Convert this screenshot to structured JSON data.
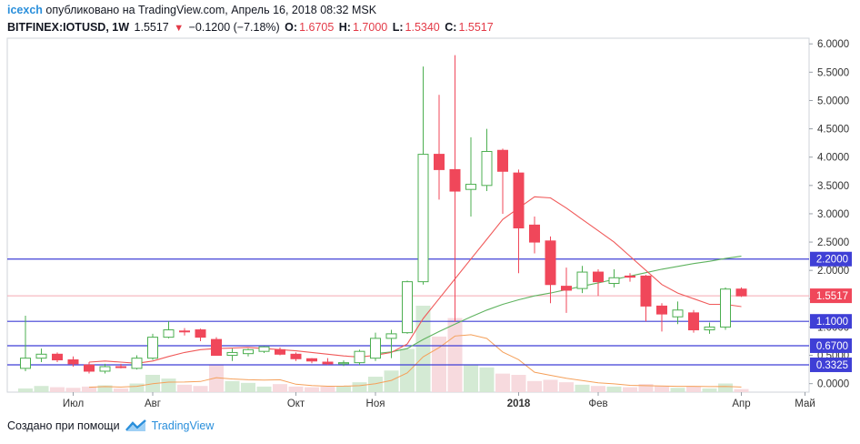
{
  "header": {
    "user": "icexch",
    "published": "опубликовано на TradingView.com, Апрель 16, 2018 08:32 MSK",
    "symbol": "BITFINEX:IOTUSD, 1W",
    "last": "1.5517",
    "change": "−0.1200 (−7.18%)",
    "o_label": "O:",
    "o_value": "1.6705",
    "h_label": "H:",
    "h_value": "1.7000",
    "l_label": "L:",
    "l_value": "1.5340",
    "c_label": "C:",
    "c_value": "1.5517"
  },
  "footer": {
    "created_with": "Создано при помощи",
    "brand": "TradingView"
  },
  "colors": {
    "up": "#4caf50",
    "down": "#f0475a",
    "level_line": "#3f3fd6",
    "price_line": "#f5a9b0",
    "ma_fast": "#f05a5a",
    "ma_slow": "#5fb35f",
    "vol_ma": "#f5a05a",
    "label_bg": "#3f3fd6",
    "price_label_bg": "#f0475a"
  },
  "chart_data": {
    "type": "candlestick",
    "y_range": [
      -0.15,
      6.1
    ],
    "y_ticks": [
      "6.0000",
      "5.5000",
      "5.0000",
      "4.5000",
      "4.0000",
      "3.5000",
      "3.0000",
      "2.5000",
      "2.0000",
      "1.5000",
      "1.0000",
      "0.5000",
      "0.0000"
    ],
    "x_ticks": [
      {
        "label": "Июл",
        "week": 3
      },
      {
        "label": "Авг",
        "week": 8
      },
      {
        "label": "Окт",
        "week": 17
      },
      {
        "label": "Ноя",
        "week": 22
      },
      {
        "label": "2018",
        "week": 31
      },
      {
        "label": "Фев",
        "week": 36
      },
      {
        "label": "Апр",
        "week": 45
      },
      {
        "label": "Май",
        "week": 49
      }
    ],
    "horizontal_levels": [
      {
        "value": 2.2,
        "label": "2.2000"
      },
      {
        "value": 1.1,
        "label": "1.1000"
      },
      {
        "value": 0.67,
        "label": "0.6700"
      },
      {
        "value": 0.3325,
        "label": "0.3325"
      }
    ],
    "last_price": {
      "value": 1.5517,
      "label": "1.5517"
    },
    "candles": [
      {
        "o": 0.27,
        "h": 1.2,
        "l": 0.22,
        "c": 0.45,
        "v": 0.06
      },
      {
        "o": 0.45,
        "h": 0.62,
        "l": 0.38,
        "c": 0.52,
        "v": 0.1
      },
      {
        "o": 0.52,
        "h": 0.55,
        "l": 0.38,
        "c": 0.42,
        "v": 0.08
      },
      {
        "o": 0.42,
        "h": 0.48,
        "l": 0.3,
        "c": 0.35,
        "v": 0.07
      },
      {
        "o": 0.33,
        "h": 0.38,
        "l": 0.18,
        "c": 0.22,
        "v": 0.09
      },
      {
        "o": 0.22,
        "h": 0.35,
        "l": 0.18,
        "c": 0.3,
        "v": 0.11
      },
      {
        "o": 0.3,
        "h": 0.35,
        "l": 0.27,
        "c": 0.29,
        "v": 0.06
      },
      {
        "o": 0.27,
        "h": 0.5,
        "l": 0.25,
        "c": 0.45,
        "v": 0.14
      },
      {
        "o": 0.45,
        "h": 0.88,
        "l": 0.42,
        "c": 0.82,
        "v": 0.28
      },
      {
        "o": 0.82,
        "h": 1.1,
        "l": 0.8,
        "c": 0.95,
        "v": 0.22
      },
      {
        "o": 0.93,
        "h": 0.98,
        "l": 0.85,
        "c": 0.92,
        "v": 0.12
      },
      {
        "o": 0.95,
        "h": 0.97,
        "l": 0.75,
        "c": 0.82,
        "v": 0.1
      },
      {
        "o": 0.78,
        "h": 0.82,
        "l": 0.5,
        "c": 0.5,
        "v": 0.45
      },
      {
        "o": 0.5,
        "h": 0.62,
        "l": 0.4,
        "c": 0.55,
        "v": 0.18
      },
      {
        "o": 0.53,
        "h": 0.62,
        "l": 0.48,
        "c": 0.6,
        "v": 0.15
      },
      {
        "o": 0.57,
        "h": 0.66,
        "l": 0.54,
        "c": 0.65,
        "v": 0.09
      },
      {
        "o": 0.6,
        "h": 0.64,
        "l": 0.5,
        "c": 0.52,
        "v": 0.13
      },
      {
        "o": 0.52,
        "h": 0.55,
        "l": 0.4,
        "c": 0.44,
        "v": 0.09
      },
      {
        "o": 0.44,
        "h": 0.45,
        "l": 0.36,
        "c": 0.4,
        "v": 0.08
      },
      {
        "o": 0.38,
        "h": 0.45,
        "l": 0.33,
        "c": 0.35,
        "v": 0.09
      },
      {
        "o": 0.35,
        "h": 0.41,
        "l": 0.31,
        "c": 0.37,
        "v": 0.1
      },
      {
        "o": 0.37,
        "h": 0.6,
        "l": 0.33,
        "c": 0.57,
        "v": 0.16
      },
      {
        "o": 0.45,
        "h": 0.9,
        "l": 0.4,
        "c": 0.8,
        "v": 0.25
      },
      {
        "o": 0.8,
        "h": 0.95,
        "l": 0.45,
        "c": 0.88,
        "v": 0.35
      },
      {
        "o": 0.9,
        "h": 1.82,
        "l": 0.88,
        "c": 1.8,
        "v": 0.7
      },
      {
        "o": 1.8,
        "h": 5.6,
        "l": 1.75,
        "c": 4.05,
        "v": 1.4
      },
      {
        "o": 4.05,
        "h": 5.1,
        "l": 3.25,
        "c": 3.78,
        "v": 0.9
      },
      {
        "o": 3.78,
        "h": 5.8,
        "l": 1.1,
        "c": 3.4,
        "v": 1.2
      },
      {
        "o": 3.43,
        "h": 4.35,
        "l": 2.95,
        "c": 3.52,
        "v": 0.45
      },
      {
        "o": 3.5,
        "h": 4.5,
        "l": 3.4,
        "c": 4.1,
        "v": 0.4
      },
      {
        "o": 4.12,
        "h": 4.15,
        "l": 3.0,
        "c": 3.75,
        "v": 0.3
      },
      {
        "o": 3.72,
        "h": 3.78,
        "l": 1.95,
        "c": 2.75,
        "v": 0.28
      },
      {
        "o": 2.8,
        "h": 2.95,
        "l": 2.3,
        "c": 2.5,
        "v": 0.18
      },
      {
        "o": 2.52,
        "h": 2.6,
        "l": 1.42,
        "c": 1.75,
        "v": 0.2
      },
      {
        "o": 1.72,
        "h": 2.05,
        "l": 1.25,
        "c": 1.65,
        "v": 0.16
      },
      {
        "o": 1.68,
        "h": 2.08,
        "l": 1.6,
        "c": 1.97,
        "v": 0.12
      },
      {
        "o": 1.97,
        "h": 2.02,
        "l": 1.55,
        "c": 1.8,
        "v": 0.1
      },
      {
        "o": 1.77,
        "h": 2.02,
        "l": 1.7,
        "c": 1.87,
        "v": 0.09
      },
      {
        "o": 1.9,
        "h": 1.95,
        "l": 1.8,
        "c": 1.88,
        "v": 0.08
      },
      {
        "o": 1.9,
        "h": 1.92,
        "l": 1.1,
        "c": 1.37,
        "v": 0.13
      },
      {
        "o": 1.37,
        "h": 1.42,
        "l": 0.92,
        "c": 1.23,
        "v": 0.1
      },
      {
        "o": 1.18,
        "h": 1.45,
        "l": 1.05,
        "c": 1.3,
        "v": 0.07
      },
      {
        "o": 1.25,
        "h": 1.3,
        "l": 0.9,
        "c": 0.95,
        "v": 0.09
      },
      {
        "o": 0.95,
        "h": 1.08,
        "l": 0.88,
        "c": 1.0,
        "v": 0.06
      },
      {
        "o": 1.0,
        "h": 1.7,
        "l": 0.95,
        "c": 1.67,
        "v": 0.14
      },
      {
        "o": 1.67,
        "h": 1.7,
        "l": 1.53,
        "c": 1.55,
        "v": 0.05
      }
    ],
    "ma_fast": [
      null,
      null,
      null,
      null,
      0.38,
      0.4,
      0.38,
      0.36,
      0.4,
      0.48,
      0.55,
      0.6,
      0.62,
      0.63,
      0.64,
      0.62,
      0.6,
      0.58,
      0.55,
      0.52,
      0.49,
      0.47,
      0.5,
      0.55,
      0.7,
      1.15,
      1.5,
      1.85,
      2.2,
      2.55,
      2.9,
      3.1,
      3.3,
      3.28,
      3.1,
      2.9,
      2.7,
      2.5,
      2.25,
      2.0,
      1.75,
      1.6,
      1.5,
      1.4,
      1.4,
      1.36
    ],
    "ma_slow": [
      null,
      null,
      null,
      null,
      null,
      null,
      null,
      null,
      null,
      null,
      null,
      null,
      null,
      null,
      null,
      null,
      null,
      null,
      null,
      null,
      null,
      null,
      0.53,
      0.56,
      0.62,
      0.78,
      0.92,
      1.05,
      1.18,
      1.3,
      1.4,
      1.48,
      1.55,
      1.6,
      1.66,
      1.72,
      1.78,
      1.84,
      1.9,
      1.96,
      2.02,
      2.07,
      2.12,
      2.16,
      2.21,
      2.25
    ]
  }
}
